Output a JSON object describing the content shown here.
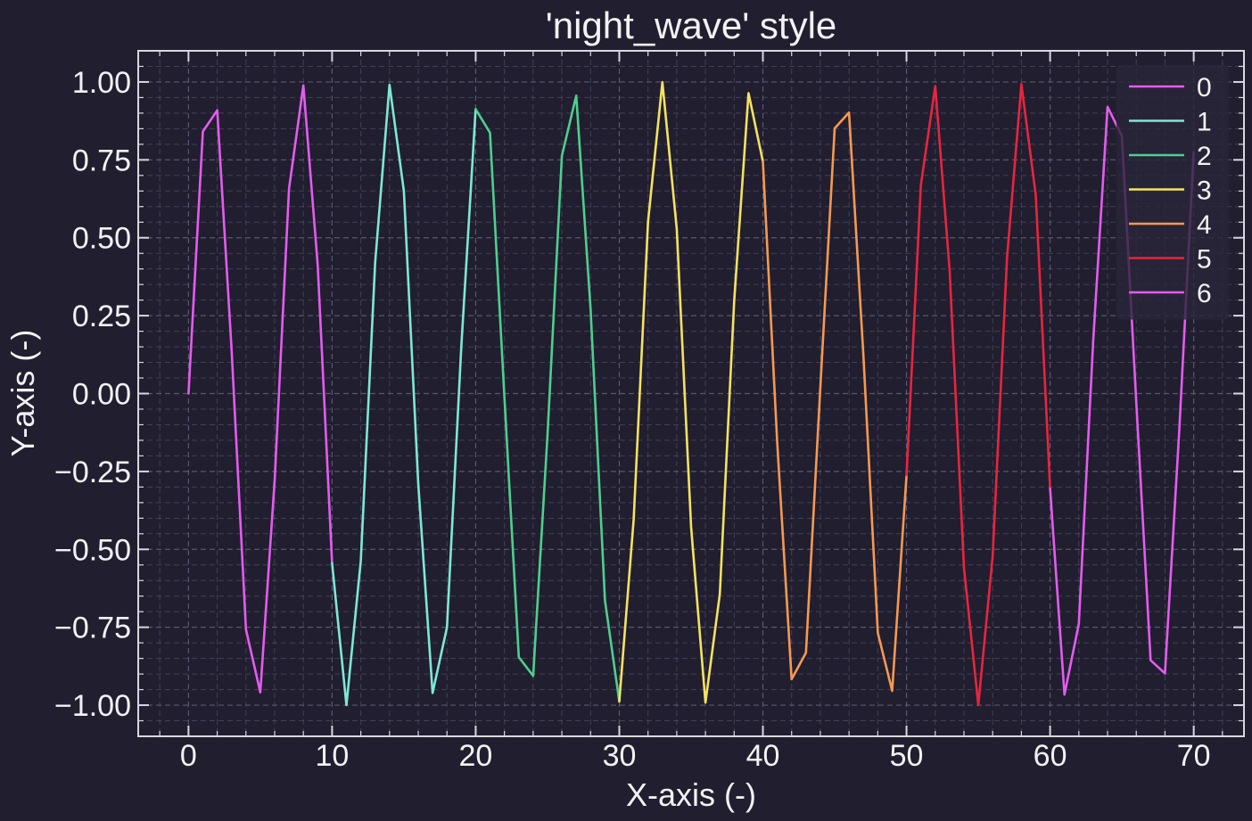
{
  "chart_data": {
    "type": "line",
    "title": "'night_wave' style",
    "xlabel": "X-axis (-)",
    "ylabel": "Y-axis (-)",
    "xlim": [
      -3.5,
      73.5
    ],
    "ylim": [
      -1.1,
      1.1
    ],
    "xticks": [
      0,
      10,
      20,
      30,
      40,
      50,
      60,
      70
    ],
    "xtick_labels": [
      "0",
      "10",
      "20",
      "30",
      "40",
      "50",
      "60",
      "70"
    ],
    "yticks": [
      1.0,
      0.75,
      0.5,
      0.25,
      0.0,
      -0.25,
      -0.5,
      -0.75,
      -1.0
    ],
    "ytick_labels": [
      "1.00",
      "0.75",
      "0.50",
      "0.25",
      "0.00",
      "−0.25",
      "−0.50",
      "−0.75",
      "−1.00"
    ],
    "grid": true,
    "legend_position": "top-right",
    "colors": {
      "background": "#211e2f",
      "plot_background": "#211e2f",
      "axes": "#d8d8e0",
      "grid": "#5a5770",
      "text": "#f2f2f5",
      "legend_background": "#2a2639"
    },
    "series": [
      {
        "name": "0",
        "color": "#e45cf0",
        "x": [
          0,
          1,
          2,
          3,
          4,
          5,
          6,
          7,
          8,
          9,
          10
        ],
        "y": [
          0.0,
          0.841,
          0.909,
          0.141,
          -0.757,
          -0.959,
          -0.279,
          0.657,
          0.989,
          0.412,
          -0.544
        ]
      },
      {
        "name": "1",
        "color": "#7de8d6",
        "x": [
          10,
          11,
          12,
          13,
          14,
          15,
          16,
          17,
          18,
          19,
          20
        ],
        "y": [
          -0.544,
          -1.0,
          -0.537,
          0.42,
          0.991,
          0.65,
          -0.288,
          -0.961,
          -0.751,
          0.15,
          0.913
        ]
      },
      {
        "name": "2",
        "color": "#4ecf8e",
        "x": [
          20,
          21,
          22,
          23,
          24,
          25,
          26,
          27,
          28,
          29,
          30
        ],
        "y": [
          0.913,
          0.837,
          -0.009,
          -0.846,
          -0.906,
          -0.132,
          0.763,
          0.956,
          0.271,
          -0.664,
          -0.988
        ]
      },
      {
        "name": "3",
        "color": "#f4e360",
        "x": [
          30,
          31,
          32,
          33,
          34,
          35,
          36,
          37,
          38,
          39,
          40
        ],
        "y": [
          -0.988,
          -0.404,
          0.551,
          1.0,
          0.529,
          -0.428,
          -0.992,
          -0.644,
          0.296,
          0.964,
          0.745
        ]
      },
      {
        "name": "4",
        "color": "#f59a52",
        "x": [
          40,
          41,
          42,
          43,
          44,
          45,
          46,
          47,
          48,
          49,
          50
        ],
        "y": [
          0.745,
          -0.159,
          -0.917,
          -0.832,
          0.018,
          0.851,
          0.902,
          0.124,
          -0.768,
          -0.954,
          -0.262
        ]
      },
      {
        "name": "5",
        "color": "#e8253e",
        "x": [
          50,
          51,
          52,
          53,
          54,
          55,
          56,
          57,
          58,
          59,
          60
        ],
        "y": [
          -0.262,
          0.67,
          0.987,
          0.396,
          -0.559,
          -1.0,
          -0.521,
          0.436,
          0.993,
          0.637,
          -0.305
        ]
      },
      {
        "name": "6",
        "color": "#e45cf0",
        "x": [
          60,
          61,
          62,
          63,
          64,
          65,
          66,
          67,
          68,
          69,
          70
        ],
        "y": [
          -0.305,
          -0.966,
          -0.739,
          0.168,
          0.92,
          0.827,
          -0.027,
          -0.856,
          -0.898,
          -0.115,
          0.774
        ]
      }
    ]
  }
}
